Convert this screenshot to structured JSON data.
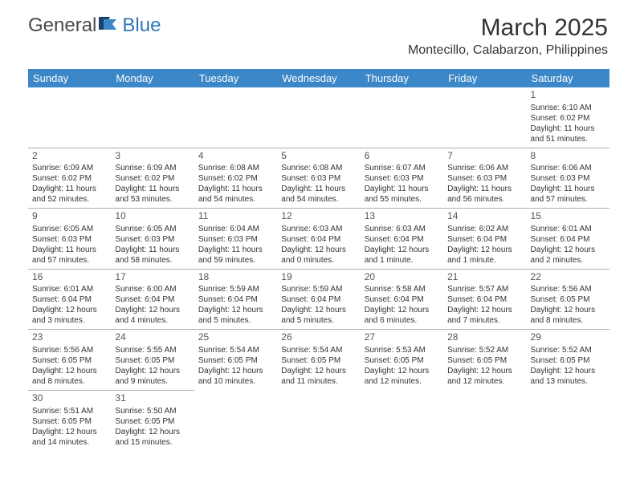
{
  "logo": {
    "part1": "General",
    "part2": "Blue"
  },
  "title": "March 2025",
  "location": "Montecillo, Calabarzon, Philippines",
  "colors": {
    "header_bg": "#3c87c7",
    "header_text": "#ffffff",
    "text": "#333333",
    "logo_gray": "#4a4a4a",
    "logo_blue": "#2f77b6",
    "border": "#b0b0b0"
  },
  "weekdays": [
    "Sunday",
    "Monday",
    "Tuesday",
    "Wednesday",
    "Thursday",
    "Friday",
    "Saturday"
  ],
  "weeks": [
    [
      null,
      null,
      null,
      null,
      null,
      null,
      {
        "n": "1",
        "sr": "Sunrise: 6:10 AM",
        "ss": "Sunset: 6:02 PM",
        "d1": "Daylight: 11 hours",
        "d2": "and 51 minutes."
      }
    ],
    [
      {
        "n": "2",
        "sr": "Sunrise: 6:09 AM",
        "ss": "Sunset: 6:02 PM",
        "d1": "Daylight: 11 hours",
        "d2": "and 52 minutes."
      },
      {
        "n": "3",
        "sr": "Sunrise: 6:09 AM",
        "ss": "Sunset: 6:02 PM",
        "d1": "Daylight: 11 hours",
        "d2": "and 53 minutes."
      },
      {
        "n": "4",
        "sr": "Sunrise: 6:08 AM",
        "ss": "Sunset: 6:02 PM",
        "d1": "Daylight: 11 hours",
        "d2": "and 54 minutes."
      },
      {
        "n": "5",
        "sr": "Sunrise: 6:08 AM",
        "ss": "Sunset: 6:03 PM",
        "d1": "Daylight: 11 hours",
        "d2": "and 54 minutes."
      },
      {
        "n": "6",
        "sr": "Sunrise: 6:07 AM",
        "ss": "Sunset: 6:03 PM",
        "d1": "Daylight: 11 hours",
        "d2": "and 55 minutes."
      },
      {
        "n": "7",
        "sr": "Sunrise: 6:06 AM",
        "ss": "Sunset: 6:03 PM",
        "d1": "Daylight: 11 hours",
        "d2": "and 56 minutes."
      },
      {
        "n": "8",
        "sr": "Sunrise: 6:06 AM",
        "ss": "Sunset: 6:03 PM",
        "d1": "Daylight: 11 hours",
        "d2": "and 57 minutes."
      }
    ],
    [
      {
        "n": "9",
        "sr": "Sunrise: 6:05 AM",
        "ss": "Sunset: 6:03 PM",
        "d1": "Daylight: 11 hours",
        "d2": "and 57 minutes."
      },
      {
        "n": "10",
        "sr": "Sunrise: 6:05 AM",
        "ss": "Sunset: 6:03 PM",
        "d1": "Daylight: 11 hours",
        "d2": "and 58 minutes."
      },
      {
        "n": "11",
        "sr": "Sunrise: 6:04 AM",
        "ss": "Sunset: 6:03 PM",
        "d1": "Daylight: 11 hours",
        "d2": "and 59 minutes."
      },
      {
        "n": "12",
        "sr": "Sunrise: 6:03 AM",
        "ss": "Sunset: 6:04 PM",
        "d1": "Daylight: 12 hours",
        "d2": "and 0 minutes."
      },
      {
        "n": "13",
        "sr": "Sunrise: 6:03 AM",
        "ss": "Sunset: 6:04 PM",
        "d1": "Daylight: 12 hours",
        "d2": "and 1 minute."
      },
      {
        "n": "14",
        "sr": "Sunrise: 6:02 AM",
        "ss": "Sunset: 6:04 PM",
        "d1": "Daylight: 12 hours",
        "d2": "and 1 minute."
      },
      {
        "n": "15",
        "sr": "Sunrise: 6:01 AM",
        "ss": "Sunset: 6:04 PM",
        "d1": "Daylight: 12 hours",
        "d2": "and 2 minutes."
      }
    ],
    [
      {
        "n": "16",
        "sr": "Sunrise: 6:01 AM",
        "ss": "Sunset: 6:04 PM",
        "d1": "Daylight: 12 hours",
        "d2": "and 3 minutes."
      },
      {
        "n": "17",
        "sr": "Sunrise: 6:00 AM",
        "ss": "Sunset: 6:04 PM",
        "d1": "Daylight: 12 hours",
        "d2": "and 4 minutes."
      },
      {
        "n": "18",
        "sr": "Sunrise: 5:59 AM",
        "ss": "Sunset: 6:04 PM",
        "d1": "Daylight: 12 hours",
        "d2": "and 5 minutes."
      },
      {
        "n": "19",
        "sr": "Sunrise: 5:59 AM",
        "ss": "Sunset: 6:04 PM",
        "d1": "Daylight: 12 hours",
        "d2": "and 5 minutes."
      },
      {
        "n": "20",
        "sr": "Sunrise: 5:58 AM",
        "ss": "Sunset: 6:04 PM",
        "d1": "Daylight: 12 hours",
        "d2": "and 6 minutes."
      },
      {
        "n": "21",
        "sr": "Sunrise: 5:57 AM",
        "ss": "Sunset: 6:04 PM",
        "d1": "Daylight: 12 hours",
        "d2": "and 7 minutes."
      },
      {
        "n": "22",
        "sr": "Sunrise: 5:56 AM",
        "ss": "Sunset: 6:05 PM",
        "d1": "Daylight: 12 hours",
        "d2": "and 8 minutes."
      }
    ],
    [
      {
        "n": "23",
        "sr": "Sunrise: 5:56 AM",
        "ss": "Sunset: 6:05 PM",
        "d1": "Daylight: 12 hours",
        "d2": "and 8 minutes."
      },
      {
        "n": "24",
        "sr": "Sunrise: 5:55 AM",
        "ss": "Sunset: 6:05 PM",
        "d1": "Daylight: 12 hours",
        "d2": "and 9 minutes."
      },
      {
        "n": "25",
        "sr": "Sunrise: 5:54 AM",
        "ss": "Sunset: 6:05 PM",
        "d1": "Daylight: 12 hours",
        "d2": "and 10 minutes."
      },
      {
        "n": "26",
        "sr": "Sunrise: 5:54 AM",
        "ss": "Sunset: 6:05 PM",
        "d1": "Daylight: 12 hours",
        "d2": "and 11 minutes."
      },
      {
        "n": "27",
        "sr": "Sunrise: 5:53 AM",
        "ss": "Sunset: 6:05 PM",
        "d1": "Daylight: 12 hours",
        "d2": "and 12 minutes."
      },
      {
        "n": "28",
        "sr": "Sunrise: 5:52 AM",
        "ss": "Sunset: 6:05 PM",
        "d1": "Daylight: 12 hours",
        "d2": "and 12 minutes."
      },
      {
        "n": "29",
        "sr": "Sunrise: 5:52 AM",
        "ss": "Sunset: 6:05 PM",
        "d1": "Daylight: 12 hours",
        "d2": "and 13 minutes."
      }
    ],
    [
      {
        "n": "30",
        "sr": "Sunrise: 5:51 AM",
        "ss": "Sunset: 6:05 PM",
        "d1": "Daylight: 12 hours",
        "d2": "and 14 minutes."
      },
      {
        "n": "31",
        "sr": "Sunrise: 5:50 AM",
        "ss": "Sunset: 6:05 PM",
        "d1": "Daylight: 12 hours",
        "d2": "and 15 minutes."
      },
      null,
      null,
      null,
      null,
      null
    ]
  ]
}
